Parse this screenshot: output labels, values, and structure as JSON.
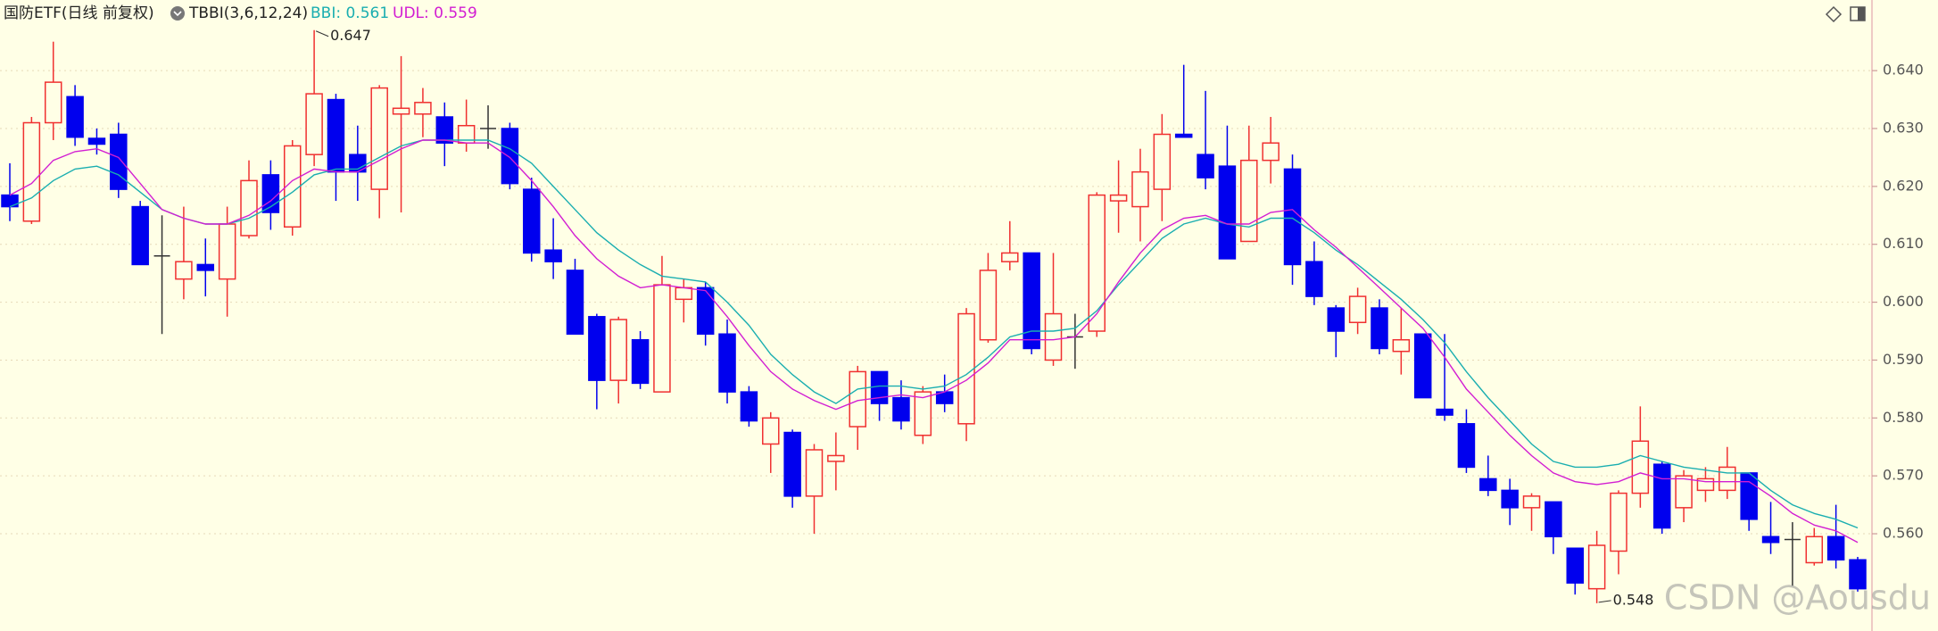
{
  "chart_data": {
    "type": "candlestick",
    "title": "国防ETF(日线 前复权)",
    "indicator": "TBBI(3,6,12,24)",
    "watermark": "CSDN @Aousdu",
    "up_color": "#f03030",
    "down_color": "#0000ee",
    "doji_color": "#333333",
    "grid": true,
    "ylim": [
      0.5432,
      0.6522
    ],
    "yticks": [
      {
        "value": 0.56,
        "label": "0.560"
      },
      {
        "value": 0.57,
        "label": "0.570"
      },
      {
        "value": 0.58,
        "label": "0.580"
      },
      {
        "value": 0.59,
        "label": "0.590"
      },
      {
        "value": 0.6,
        "label": "0.600"
      },
      {
        "value": 0.61,
        "label": "0.610"
      },
      {
        "value": 0.62,
        "label": "0.620"
      },
      {
        "value": 0.63,
        "label": "0.630"
      },
      {
        "value": 0.64,
        "label": "0.640"
      }
    ],
    "open": [
      0.6185,
      0.614,
      0.631,
      0.6355,
      0.6283,
      0.629,
      0.6165,
      0.608,
      0.604,
      0.6065,
      0.604,
      0.6115,
      0.622,
      0.613,
      0.6255,
      0.635,
      0.6255,
      0.6195,
      0.6325,
      0.6325,
      0.632,
      0.6275,
      0.63,
      0.63,
      0.6195,
      0.609,
      0.6055,
      0.5975,
      0.5865,
      0.5935,
      0.5845,
      0.6005,
      0.6025,
      0.5945,
      0.5845,
      0.5755,
      0.5775,
      0.5665,
      0.5725,
      0.5785,
      0.588,
      0.5835,
      0.577,
      0.5845,
      0.579,
      0.5935,
      0.607,
      0.6085,
      0.59,
      0.594,
      0.595,
      0.6175,
      0.6165,
      0.6195,
      0.629,
      0.6255,
      0.6235,
      0.6105,
      0.6245,
      0.623,
      0.607,
      0.599,
      0.5965,
      0.599,
      0.5915,
      0.5945,
      0.5815,
      0.579,
      0.5695,
      0.5675,
      0.5645,
      0.5655,
      0.5575,
      0.5505,
      0.557,
      0.567,
      0.572,
      0.5645,
      0.5675,
      0.5675,
      0.5705,
      0.5595,
      0.559,
      0.555,
      0.5595,
      0.5555
    ],
    "high": [
      0.624,
      0.632,
      0.645,
      0.6375,
      0.63,
      0.631,
      0.6175,
      0.615,
      0.6165,
      0.611,
      0.6165,
      0.6245,
      0.6245,
      0.628,
      0.647,
      0.636,
      0.6305,
      0.6375,
      0.6425,
      0.637,
      0.6345,
      0.635,
      0.634,
      0.631,
      0.6215,
      0.6145,
      0.6075,
      0.598,
      0.5975,
      0.595,
      0.608,
      0.604,
      0.6035,
      0.597,
      0.5855,
      0.581,
      0.578,
      0.5755,
      0.5775,
      0.589,
      0.588,
      0.5865,
      0.5855,
      0.5875,
      0.599,
      0.6085,
      0.614,
      0.6085,
      0.6085,
      0.598,
      0.619,
      0.6245,
      0.6265,
      0.6325,
      0.641,
      0.6365,
      0.6305,
      0.6305,
      0.632,
      0.6255,
      0.6105,
      0.5995,
      0.6025,
      0.6005,
      0.599,
      0.5945,
      0.5945,
      0.5815,
      0.5735,
      0.5695,
      0.567,
      0.5655,
      0.5575,
      0.5605,
      0.5675,
      0.582,
      0.5725,
      0.571,
      0.5715,
      0.575,
      0.5705,
      0.5655,
      0.562,
      0.561,
      0.565,
      0.556
    ],
    "low": [
      0.614,
      0.6135,
      0.628,
      0.627,
      0.6255,
      0.618,
      0.6065,
      0.5945,
      0.6005,
      0.601,
      0.5975,
      0.611,
      0.6125,
      0.6115,
      0.6235,
      0.6175,
      0.6175,
      0.6145,
      0.6155,
      0.6285,
      0.6235,
      0.626,
      0.6265,
      0.6195,
      0.607,
      0.604,
      0.5945,
      0.5815,
      0.5825,
      0.585,
      0.5845,
      0.5965,
      0.5925,
      0.5825,
      0.5785,
      0.5705,
      0.5645,
      0.56,
      0.5675,
      0.5745,
      0.5795,
      0.578,
      0.5755,
      0.581,
      0.576,
      0.593,
      0.6055,
      0.591,
      0.589,
      0.5885,
      0.594,
      0.612,
      0.6105,
      0.614,
      0.6285,
      0.6195,
      0.6075,
      0.6105,
      0.6205,
      0.603,
      0.5995,
      0.5905,
      0.5945,
      0.591,
      0.5875,
      0.5835,
      0.5795,
      0.5705,
      0.5665,
      0.5615,
      0.5605,
      0.5565,
      0.5495,
      0.548,
      0.553,
      0.5645,
      0.56,
      0.562,
      0.5655,
      0.566,
      0.5605,
      0.5565,
      0.551,
      0.5545,
      0.554,
      0.55
    ],
    "close": [
      0.6165,
      0.631,
      0.638,
      0.6285,
      0.6273,
      0.6195,
      0.6065,
      0.608,
      0.607,
      0.6055,
      0.6135,
      0.621,
      0.6155,
      0.627,
      0.636,
      0.6225,
      0.6225,
      0.637,
      0.6335,
      0.6345,
      0.6275,
      0.6305,
      0.63,
      0.6205,
      0.6085,
      0.607,
      0.5945,
      0.5865,
      0.597,
      0.586,
      0.603,
      0.6025,
      0.5945,
      0.5845,
      0.5795,
      0.58,
      0.5665,
      0.5745,
      0.5735,
      0.588,
      0.5825,
      0.5795,
      0.5845,
      0.5825,
      0.598,
      0.6055,
      0.6085,
      0.592,
      0.598,
      0.594,
      0.6185,
      0.6185,
      0.6225,
      0.629,
      0.6285,
      0.6215,
      0.6075,
      0.6245,
      0.6275,
      0.6065,
      0.601,
      0.595,
      0.601,
      0.592,
      0.5935,
      0.5835,
      0.5805,
      0.5715,
      0.5675,
      0.5645,
      0.5665,
      0.5595,
      0.5515,
      0.558,
      0.567,
      0.576,
      0.561,
      0.57,
      0.5695,
      0.5715,
      0.5625,
      0.5585,
      0.559,
      0.5595,
      0.5555,
      0.5505
    ],
    "lines": [
      {
        "name": "BBI: 0.561",
        "color": "#1aaeb0",
        "values": [
          0.6165,
          0.618,
          0.621,
          0.623,
          0.6235,
          0.622,
          0.619,
          0.616,
          0.6145,
          0.6135,
          0.6135,
          0.6145,
          0.6165,
          0.619,
          0.622,
          0.623,
          0.623,
          0.625,
          0.627,
          0.628,
          0.628,
          0.628,
          0.628,
          0.6265,
          0.624,
          0.62,
          0.616,
          0.612,
          0.609,
          0.6065,
          0.6045,
          0.604,
          0.6035,
          0.6,
          0.596,
          0.591,
          0.5875,
          0.5845,
          0.5825,
          0.585,
          0.5855,
          0.5855,
          0.585,
          0.5855,
          0.5875,
          0.5905,
          0.594,
          0.595,
          0.595,
          0.5955,
          0.5985,
          0.603,
          0.607,
          0.611,
          0.6135,
          0.6145,
          0.6135,
          0.613,
          0.6145,
          0.6145,
          0.612,
          0.609,
          0.6065,
          0.6035,
          0.6005,
          0.597,
          0.593,
          0.588,
          0.5835,
          0.5795,
          0.5755,
          0.5725,
          0.5715,
          0.5715,
          0.572,
          0.5735,
          0.5725,
          0.5715,
          0.571,
          0.5705,
          0.5705,
          0.5675,
          0.565,
          0.5635,
          0.5625,
          0.561
        ]
      },
      {
        "name": "UDL: 0.559",
        "color": "#d21ed2",
        "values": [
          0.6185,
          0.6205,
          0.6245,
          0.626,
          0.6265,
          0.625,
          0.6205,
          0.616,
          0.6145,
          0.6135,
          0.6135,
          0.615,
          0.6175,
          0.621,
          0.623,
          0.6225,
          0.6225,
          0.6245,
          0.6265,
          0.628,
          0.628,
          0.6275,
          0.6275,
          0.625,
          0.621,
          0.6165,
          0.6115,
          0.6075,
          0.6045,
          0.6025,
          0.603,
          0.6025,
          0.602,
          0.5975,
          0.5925,
          0.588,
          0.585,
          0.583,
          0.5815,
          0.583,
          0.5835,
          0.584,
          0.5835,
          0.5845,
          0.5865,
          0.5895,
          0.5935,
          0.5935,
          0.5935,
          0.594,
          0.598,
          0.6035,
          0.6085,
          0.6125,
          0.6145,
          0.615,
          0.6135,
          0.6135,
          0.6155,
          0.616,
          0.6125,
          0.6095,
          0.606,
          0.6025,
          0.599,
          0.5955,
          0.5905,
          0.585,
          0.581,
          0.577,
          0.5735,
          0.5705,
          0.569,
          0.5685,
          0.569,
          0.5705,
          0.5695,
          0.5695,
          0.569,
          0.569,
          0.569,
          0.5665,
          0.5635,
          0.5615,
          0.5605,
          0.5585
        ]
      }
    ],
    "annotations": [
      {
        "label": "0.647",
        "value": 0.647
      },
      {
        "label": "0.548",
        "value": 0.548
      }
    ]
  }
}
